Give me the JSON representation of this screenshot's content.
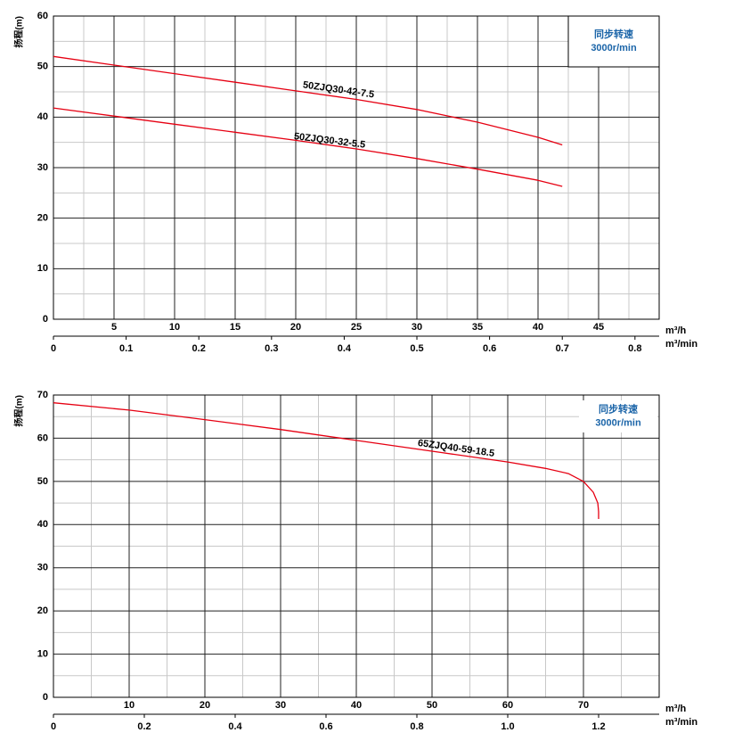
{
  "chart_data": [
    {
      "type": "line",
      "ylabel": "扬程(m)",
      "xlabel": "m³/h",
      "x2label": "m³/min",
      "annotations": [
        "同步转速",
        "3000r/min"
      ],
      "xlim": [
        0,
        50
      ],
      "xticks": [
        5,
        10,
        15,
        20,
        25,
        30,
        35,
        40,
        45
      ],
      "x2lim": [
        0,
        0.8333
      ],
      "x2ticks": [
        0,
        0.1,
        0.2,
        0.3,
        0.4,
        0.5,
        0.6,
        0.7,
        0.8
      ],
      "ylim": [
        0,
        60
      ],
      "yticks": [
        0,
        10,
        20,
        30,
        40,
        50,
        60
      ],
      "grid": true,
      "series": [
        {
          "name": "50ZJQ30-42-7.5",
          "color": "#e60012",
          "x": [
            0,
            5,
            10,
            15,
            20,
            25,
            30,
            35,
            40,
            42
          ],
          "values": [
            52,
            50.3,
            48.6,
            46.9,
            45.2,
            43.5,
            41.5,
            39,
            36,
            34.5
          ]
        },
        {
          "name": "50ZJQ30-32-5.5",
          "color": "#e60012",
          "x": [
            0,
            5,
            10,
            15,
            20,
            25,
            30,
            35,
            40,
            42
          ],
          "values": [
            41.8,
            40.2,
            38.6,
            37,
            35.4,
            33.7,
            31.8,
            29.7,
            27.5,
            26.3
          ]
        }
      ]
    },
    {
      "type": "line",
      "ylabel": "扬程(m)",
      "xlabel": "m³/h",
      "x2label": "m³/min",
      "annotations": [
        "同步转速",
        "3000r/min"
      ],
      "xlim": [
        0,
        80
      ],
      "xticks": [
        10,
        20,
        30,
        40,
        50,
        60,
        70
      ],
      "x2lim": [
        0,
        1.3333
      ],
      "x2ticks": [
        0,
        0.2,
        0.4,
        0.6,
        0.8,
        {
          "value": 1,
          "label": "1.0"
        },
        1.2
      ],
      "ylim": [
        0,
        70
      ],
      "yticks": [
        0,
        10,
        20,
        30,
        40,
        50,
        60,
        70
      ],
      "grid": true,
      "series": [
        {
          "name": "65ZJQ40-59-18.5",
          "color": "#e60012",
          "x": [
            0,
            10,
            20,
            30,
            40,
            50,
            60,
            65,
            68,
            70,
            71.3,
            71.9,
            72,
            72
          ],
          "values": [
            68.2,
            66.5,
            64.3,
            62,
            59.5,
            57,
            54.5,
            53,
            51.8,
            50,
            47.5,
            45,
            43,
            41.3
          ]
        }
      ]
    }
  ]
}
